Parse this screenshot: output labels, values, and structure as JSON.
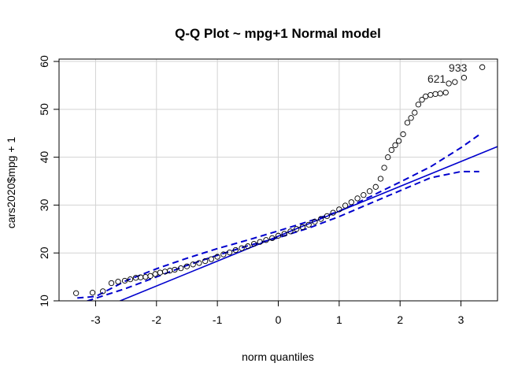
{
  "chart_data": {
    "type": "scatter",
    "title": "Q-Q Plot ~ mpg+1 Normal model",
    "xlabel": "norm quantiles",
    "ylabel": "cars2020$mpg + 1",
    "xlim": [
      -3.6,
      3.6
    ],
    "ylim": [
      10,
      60.5
    ],
    "xticks": [
      -3,
      -2,
      -1,
      0,
      1,
      2,
      3
    ],
    "yticks": [
      10,
      20,
      30,
      40,
      50,
      60
    ],
    "grid": true,
    "reference_line": {
      "intercept": 23.5,
      "slope": 5.2,
      "color": "#0000cd"
    },
    "envelope": {
      "color": "#0000cd",
      "lower": [
        [
          -3.3,
          9.3
        ],
        [
          -2.5,
          12.6
        ],
        [
          -2.0,
          15.0
        ],
        [
          -1.5,
          17.4
        ],
        [
          -1.0,
          19.5
        ],
        [
          -0.5,
          21.5
        ],
        [
          0.0,
          23.2
        ],
        [
          0.5,
          25.2
        ],
        [
          1.0,
          27.6
        ],
        [
          1.5,
          30.3
        ],
        [
          2.0,
          33.0
        ],
        [
          2.5,
          35.7
        ],
        [
          3.0,
          37.0
        ],
        [
          3.3,
          37.0
        ]
      ],
      "upper": [
        [
          -3.3,
          10.6
        ],
        [
          -3.0,
          10.9
        ],
        [
          -2.5,
          14.2
        ],
        [
          -2.0,
          16.7
        ],
        [
          -1.5,
          18.9
        ],
        [
          -1.0,
          20.9
        ],
        [
          -0.5,
          22.7
        ],
        [
          0.0,
          24.6
        ],
        [
          0.5,
          26.6
        ],
        [
          1.0,
          28.7
        ],
        [
          1.5,
          31.7
        ],
        [
          2.0,
          34.8
        ],
        [
          2.5,
          38.0
        ],
        [
          3.0,
          42.0
        ],
        [
          3.3,
          44.7
        ]
      ]
    },
    "points": [
      [
        -3.32,
        11.6
      ],
      [
        -3.05,
        11.7
      ],
      [
        -2.88,
        12.0
      ],
      [
        -2.74,
        13.7
      ],
      [
        -2.63,
        14.0
      ],
      [
        -2.52,
        14.2
      ],
      [
        -2.43,
        14.5
      ],
      [
        -2.34,
        14.8
      ],
      [
        -2.26,
        14.9
      ],
      [
        -2.18,
        15.0
      ],
      [
        -2.1,
        15.2
      ],
      [
        -2.02,
        15.6
      ],
      [
        -1.94,
        15.9
      ],
      [
        -1.86,
        16.1
      ],
      [
        -1.78,
        16.3
      ],
      [
        -1.7,
        16.5
      ],
      [
        -1.6,
        16.8
      ],
      [
        -1.5,
        17.2
      ],
      [
        -1.4,
        17.6
      ],
      [
        -1.3,
        17.9
      ],
      [
        -1.2,
        18.3
      ],
      [
        -1.1,
        18.7
      ],
      [
        -1.0,
        19.2
      ],
      [
        -0.9,
        19.7
      ],
      [
        -0.8,
        20.1
      ],
      [
        -0.7,
        20.6
      ],
      [
        -0.6,
        21.0
      ],
      [
        -0.5,
        21.4
      ],
      [
        -0.4,
        21.9
      ],
      [
        -0.3,
        22.3
      ],
      [
        -0.2,
        22.7
      ],
      [
        -0.1,
        23.1
      ],
      [
        0.0,
        23.6
      ],
      [
        0.1,
        24.0
      ],
      [
        0.2,
        24.5
      ],
      [
        0.3,
        25.0
      ],
      [
        0.4,
        25.4
      ],
      [
        0.5,
        25.9
      ],
      [
        0.6,
        26.5
      ],
      [
        0.7,
        27.1
      ],
      [
        0.8,
        27.7
      ],
      [
        0.9,
        28.4
      ],
      [
        1.0,
        29.1
      ],
      [
        1.1,
        29.9
      ],
      [
        1.2,
        30.6
      ],
      [
        1.3,
        31.4
      ],
      [
        1.4,
        32.1
      ],
      [
        1.5,
        32.9
      ],
      [
        1.6,
        33.8
      ],
      [
        1.68,
        35.5
      ],
      [
        1.74,
        37.8
      ],
      [
        1.8,
        40.0
      ],
      [
        1.86,
        41.5
      ],
      [
        1.92,
        42.5
      ],
      [
        1.98,
        43.4
      ],
      [
        2.05,
        44.8
      ],
      [
        2.12,
        47.2
      ],
      [
        2.18,
        48.2
      ],
      [
        2.24,
        49.3
      ],
      [
        2.3,
        51.0
      ],
      [
        2.36,
        52.0
      ],
      [
        2.42,
        52.7
      ],
      [
        2.5,
        53.0
      ],
      [
        2.58,
        53.2
      ],
      [
        2.66,
        53.3
      ],
      [
        2.75,
        53.5
      ],
      [
        2.8,
        55.4
      ],
      [
        2.9,
        55.7
      ],
      [
        3.05,
        56.6
      ],
      [
        3.35,
        58.8
      ]
    ],
    "annotations": [
      {
        "text": "933",
        "x": 2.95,
        "y": 58.7
      },
      {
        "text": "621",
        "x": 2.6,
        "y": 56.4
      }
    ]
  }
}
